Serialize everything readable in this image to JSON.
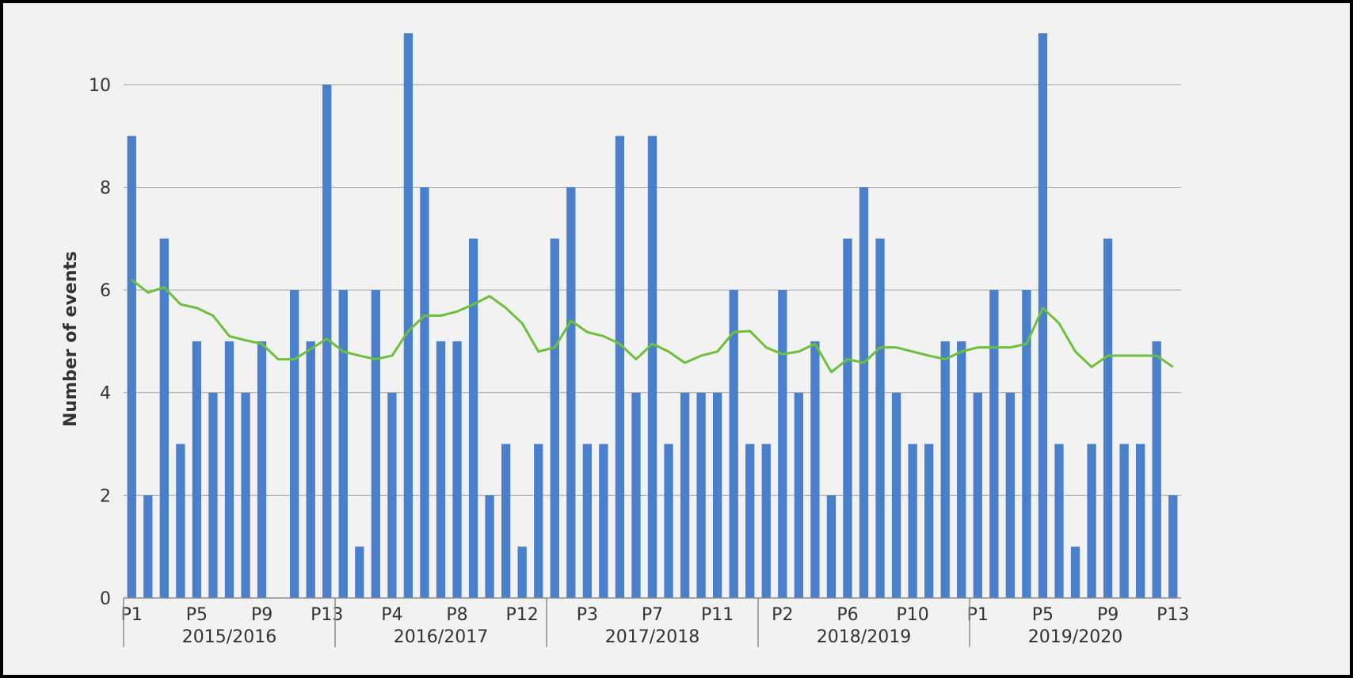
{
  "chart_data": {
    "type": "bar",
    "title": "",
    "xlabel": "",
    "ylabel": "Number of events",
    "ylim": [
      0,
      11
    ],
    "yticks": [
      0,
      2,
      4,
      6,
      8,
      10
    ],
    "grid": true,
    "legend": "none",
    "colors": {
      "bars": "#4a7fcc",
      "line": "#6cc03a",
      "grid": "#a6a6a6",
      "background": "#f2f2f2"
    },
    "groups": [
      {
        "label": "2015/2016",
        "tick_labels": [
          "P1",
          "P5",
          "P9",
          "P13"
        ]
      },
      {
        "label": "2016/2017",
        "tick_labels": [
          "P4",
          "P8",
          "P12"
        ]
      },
      {
        "label": "2017/2018",
        "tick_labels": [
          "P3",
          "P7",
          "P11"
        ]
      },
      {
        "label": "2018/2019",
        "tick_labels": [
          "P2",
          "P6",
          "P10"
        ]
      },
      {
        "label": "2019/2020",
        "tick_labels": [
          "P1",
          "P5",
          "P9",
          "P13"
        ]
      }
    ],
    "categories": [
      "2015/2016 P1",
      "2015/2016 P2",
      "2015/2016 P3",
      "2015/2016 P4",
      "2015/2016 P5",
      "2015/2016 P6",
      "2015/2016 P7",
      "2015/2016 P8",
      "2015/2016 P9",
      "2015/2016 P10",
      "2015/2016 P11",
      "2015/2016 P12",
      "2015/2016 P13",
      "2016/2017 P1",
      "2016/2017 P2",
      "2016/2017 P3",
      "2016/2017 P4",
      "2016/2017 P5",
      "2016/2017 P6",
      "2016/2017 P7",
      "2016/2017 P8",
      "2016/2017 P9",
      "2016/2017 P10",
      "2016/2017 P11",
      "2016/2017 P12",
      "2016/2017 P13",
      "2017/2018 P1",
      "2017/2018 P2",
      "2017/2018 P3",
      "2017/2018 P4",
      "2017/2018 P5",
      "2017/2018 P6",
      "2017/2018 P7",
      "2017/2018 P8",
      "2017/2018 P9",
      "2017/2018 P10",
      "2017/2018 P11",
      "2017/2018 P12",
      "2017/2018 P13",
      "2018/2019 P1",
      "2018/2019 P2",
      "2018/2019 P3",
      "2018/2019 P4",
      "2018/2019 P5",
      "2018/2019 P6",
      "2018/2019 P7",
      "2018/2019 P8",
      "2018/2019 P9",
      "2018/2019 P10",
      "2018/2019 P11",
      "2018/2019 P12",
      "2018/2019 P13",
      "2019/2020 P1",
      "2019/2020 P2",
      "2019/2020 P3",
      "2019/2020 P4",
      "2019/2020 P5",
      "2019/2020 P6",
      "2019/2020 P7",
      "2019/2020 P8",
      "2019/2020 P9",
      "2019/2020 P10",
      "2019/2020 P11",
      "2019/2020 P12",
      "2019/2020 P13"
    ],
    "series": [
      {
        "type": "bar",
        "values": [
          9,
          2,
          7,
          3,
          5,
          4,
          5,
          4,
          5,
          0,
          6,
          5,
          10,
          6,
          1,
          6,
          4,
          11,
          8,
          5,
          5,
          7,
          2,
          3,
          1,
          3,
          7,
          8,
          3,
          3,
          9,
          4,
          9,
          3,
          4,
          4,
          4,
          6,
          3,
          3,
          6,
          4,
          5,
          2,
          7,
          8,
          7,
          4,
          3,
          3,
          5,
          5,
          4,
          6,
          4,
          6,
          11,
          3,
          1,
          3,
          7,
          3,
          3,
          5,
          2
        ]
      },
      {
        "type": "line",
        "values": [
          6.2,
          5.95,
          6.05,
          5.72,
          5.65,
          5.5,
          5.1,
          5.02,
          4.95,
          4.65,
          4.65,
          4.85,
          5.05,
          4.8,
          4.72,
          4.65,
          4.72,
          5.2,
          5.5,
          5.5,
          5.58,
          5.72,
          5.88,
          5.65,
          5.35,
          4.8,
          4.88,
          5.4,
          5.18,
          5.1,
          4.95,
          4.65,
          4.95,
          4.8,
          4.58,
          4.72,
          4.8,
          5.18,
          5.2,
          4.88,
          4.75,
          4.8,
          4.95,
          4.4,
          4.65,
          4.58,
          4.88,
          4.88,
          4.8,
          4.72,
          4.65,
          4.8,
          4.88,
          4.88,
          4.88,
          4.95,
          5.65,
          5.35,
          4.8,
          4.5,
          4.72,
          4.72,
          4.72,
          4.72,
          4.5
        ]
      }
    ]
  }
}
